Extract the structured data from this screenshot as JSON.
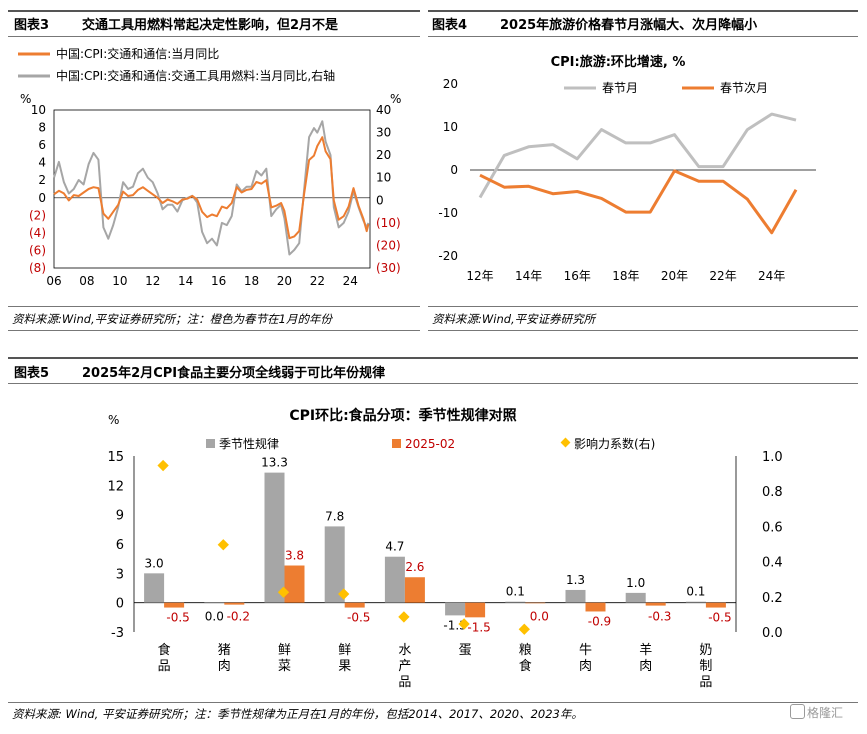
{
  "fig3": {
    "header": "图表3",
    "title": "交通工具用燃料常起决定性影响，但2月不是",
    "legend": [
      {
        "label": "中国:CPI:交通和通信:当月同比",
        "color": "#ED7D31"
      },
      {
        "label": "中国:CPI:交通和通信:交通工具用燃料:当月同比,右轴",
        "color": "#A6A6A6"
      }
    ],
    "source": "资料来源:Wind,平安证券研究所；注：橙色为春节在1月的年份"
  },
  "fig4": {
    "header": "图表4",
    "title": "2025年旅游价格春节月涨幅大、次月降幅小",
    "source": "资料来源:Wind,平安证券研究所"
  },
  "fig5": {
    "header": "图表5",
    "title": "2025年2月CPI食品主要分项全线弱于可比年份规律",
    "source": "资料来源: Wind, 平安证券研究所；注：季节性规律为正月在1月的年份，包括2014、2017、2020、2023年。"
  },
  "watermark": "格隆汇",
  "chart_data": [
    {
      "type": "line",
      "left_axis_unit": "%",
      "right_axis_unit": "%",
      "x_ticks": [
        "06",
        "08",
        "10",
        "12",
        "14",
        "16",
        "18",
        "20",
        "22",
        "24"
      ],
      "left_ticks": [
        "10",
        "8",
        "6",
        "4",
        "2",
        "0",
        "(2)",
        "(4)",
        "(6)",
        "(8)"
      ],
      "right_ticks": [
        "40",
        "30",
        "20",
        "10",
        "0",
        "(10)",
        "(20)",
        "(30)"
      ],
      "ylim_left": [
        -8,
        10
      ],
      "ylim_right": [
        -30,
        40
      ],
      "x_range": [
        2006.0,
        2025.2
      ],
      "series": [
        {
          "name": "中国:CPI:交通和通信:当月同比",
          "axis": "left",
          "color": "#ED7D31",
          "x": [
            2006.0,
            2006.3,
            2006.6,
            2006.9,
            2007.2,
            2007.5,
            2007.8,
            2008.1,
            2008.4,
            2008.7,
            2009.0,
            2009.3,
            2009.6,
            2009.9,
            2010.2,
            2010.5,
            2010.8,
            2011.1,
            2011.4,
            2011.7,
            2012.0,
            2012.3,
            2012.6,
            2012.9,
            2013.2,
            2013.5,
            2013.8,
            2014.1,
            2014.4,
            2014.7,
            2015.0,
            2015.3,
            2015.6,
            2015.9,
            2016.2,
            2016.5,
            2016.8,
            2017.1,
            2017.4,
            2017.7,
            2018.0,
            2018.3,
            2018.6,
            2018.9,
            2019.2,
            2019.5,
            2019.8,
            2020.0,
            2020.3,
            2020.6,
            2020.9,
            2021.2,
            2021.5,
            2021.8,
            2022.0,
            2022.3,
            2022.5,
            2022.8,
            2023.0,
            2023.3,
            2023.6,
            2023.9,
            2024.2,
            2024.5,
            2024.8,
            2025.0,
            2025.1
          ],
          "values": [
            0.4,
            0.8,
            0.5,
            -0.3,
            0.3,
            0.2,
            0.6,
            1.0,
            1.2,
            1.1,
            -1.8,
            -2.4,
            -1.6,
            -0.8,
            0.7,
            0.2,
            0.3,
            0.9,
            1.2,
            0.8,
            0.4,
            0.0,
            -0.6,
            -0.2,
            -0.4,
            -0.7,
            -0.2,
            -0.1,
            0.2,
            -0.2,
            -1.6,
            -2.2,
            -1.9,
            -2.1,
            -1.0,
            -1.2,
            -0.6,
            1.2,
            0.6,
            0.9,
            1.0,
            1.8,
            1.6,
            2.0,
            -1.1,
            -0.9,
            -0.6,
            -1.5,
            -4.6,
            -4.4,
            -3.8,
            0.5,
            4.3,
            4.8,
            5.9,
            6.9,
            5.3,
            4.4,
            -0.3,
            -2.5,
            -2.1,
            -1.0,
            1.1,
            -0.9,
            -2.4,
            -3.8,
            -3.0
          ]
        },
        {
          "name": "中国:CPI:交通和通信:交通工具用燃料:当月同比,右轴",
          "axis": "right",
          "color": "#A6A6A6",
          "x": [
            2006.0,
            2006.3,
            2006.6,
            2006.9,
            2007.2,
            2007.5,
            2007.8,
            2008.1,
            2008.4,
            2008.7,
            2009.0,
            2009.3,
            2009.6,
            2009.9,
            2010.2,
            2010.5,
            2010.8,
            2011.1,
            2011.4,
            2011.7,
            2012.0,
            2012.3,
            2012.6,
            2012.9,
            2013.2,
            2013.5,
            2013.8,
            2014.1,
            2014.4,
            2014.7,
            2015.0,
            2015.3,
            2015.6,
            2015.9,
            2016.2,
            2016.5,
            2016.8,
            2017.1,
            2017.4,
            2017.7,
            2018.0,
            2018.3,
            2018.6,
            2018.9,
            2019.2,
            2019.5,
            2019.8,
            2020.0,
            2020.3,
            2020.6,
            2020.9,
            2021.2,
            2021.5,
            2021.8,
            2022.0,
            2022.3,
            2022.5,
            2022.8,
            2023.0,
            2023.3,
            2023.6,
            2023.9,
            2024.2,
            2024.5,
            2024.8,
            2025.0,
            2025.1
          ],
          "values": [
            10,
            17,
            8,
            3,
            5,
            9,
            7,
            16,
            21,
            18,
            -12,
            -17,
            -11,
            -3,
            8,
            5,
            6,
            12,
            14,
            10,
            8,
            3,
            -4,
            -2,
            -2,
            -5,
            0,
            1,
            2,
            -1,
            -14,
            -19,
            -17,
            -20,
            -10,
            -11,
            -7,
            7,
            4,
            6,
            6,
            13,
            11,
            14,
            -7,
            -4,
            -2,
            -8,
            -24,
            -22,
            -19,
            5,
            28,
            32,
            30,
            35,
            26,
            20,
            -3,
            -12,
            -10,
            -5,
            4,
            -3,
            -9,
            -12,
            -10
          ]
        }
      ]
    },
    {
      "type": "line",
      "title": "CPI:旅游:环比增速, %",
      "x_ticks": [
        "12年",
        "14年",
        "16年",
        "18年",
        "20年",
        "22年",
        "24年"
      ],
      "y_ticks": [
        "20",
        "10",
        "0",
        "-10",
        "-20"
      ],
      "ylim": [
        -20,
        20
      ],
      "x_range": [
        2012,
        2025
      ],
      "series": [
        {
          "name": "春节月",
          "color": "#BFBFBF",
          "x": [
            2012,
            2013,
            2014,
            2015,
            2016,
            2017,
            2018,
            2019,
            2020,
            2021,
            2022,
            2023,
            2024,
            2025
          ],
          "values": [
            -6.4,
            3.4,
            5.4,
            5.9,
            2.6,
            9.4,
            6.3,
            6.3,
            8.2,
            0.8,
            0.8,
            9.4,
            13.0,
            11.6
          ]
        },
        {
          "name": "春节次月",
          "color": "#ED7D31",
          "x": [
            2012,
            2013,
            2014,
            2015,
            2016,
            2017,
            2018,
            2019,
            2020,
            2021,
            2022,
            2023,
            2024,
            2025
          ],
          "values": [
            -1.2,
            -4.0,
            -3.8,
            -5.5,
            -5.0,
            -6.6,
            -9.8,
            -9.8,
            -0.2,
            -2.6,
            -2.6,
            -6.8,
            -14.6,
            -4.6
          ]
        }
      ]
    },
    {
      "type": "bar",
      "title": "CPI环比:食品分项：季节性规律对照",
      "left_axis_unit": "%",
      "categories": [
        "食品",
        "猪肉",
        "鲜菜",
        "鲜果",
        "水产品",
        "蛋",
        "粮食",
        "牛肉",
        "羊肉",
        "奶制品"
      ],
      "left_ticks": [
        "15",
        "12",
        "9",
        "6",
        "3",
        "0",
        "-3"
      ],
      "right_ticks": [
        "1.0",
        "0.8",
        "0.6",
        "0.4",
        "0.2",
        "0.0"
      ],
      "ylim_left": [
        -3,
        15
      ],
      "ylim_right": [
        0,
        1.0
      ],
      "series": [
        {
          "name": "季节性规律",
          "color": "#A6A6A6",
          "axis": "left",
          "values": [
            3.0,
            0.0,
            13.3,
            7.8,
            4.7,
            -1.3,
            0.1,
            1.3,
            1.0,
            0.1
          ],
          "labels": [
            "3.0",
            "0.0",
            "13.3",
            "7.8",
            "4.7",
            "-1.3",
            "0.1",
            "1.3",
            "1.0",
            "0.1"
          ]
        },
        {
          "name": "2025-02",
          "color": "#ED7D31",
          "axis": "left",
          "values": [
            -0.5,
            -0.2,
            3.8,
            -0.5,
            2.6,
            -1.5,
            0.0,
            -0.9,
            -0.3,
            -0.5
          ],
          "labels": [
            "-0.5",
            "-0.2",
            "3.8",
            "-0.5",
            "2.6",
            "-1.5",
            "0.0",
            "-0.9",
            "-0.3",
            "-0.5"
          ]
        },
        {
          "name": "影响力系数(右)",
          "color": "#FFC000",
          "axis": "right",
          "values": [
            0.94,
            0.49,
            0.22,
            0.21,
            0.08,
            0.04,
            0.01,
            null,
            null,
            null
          ]
        }
      ]
    }
  ]
}
